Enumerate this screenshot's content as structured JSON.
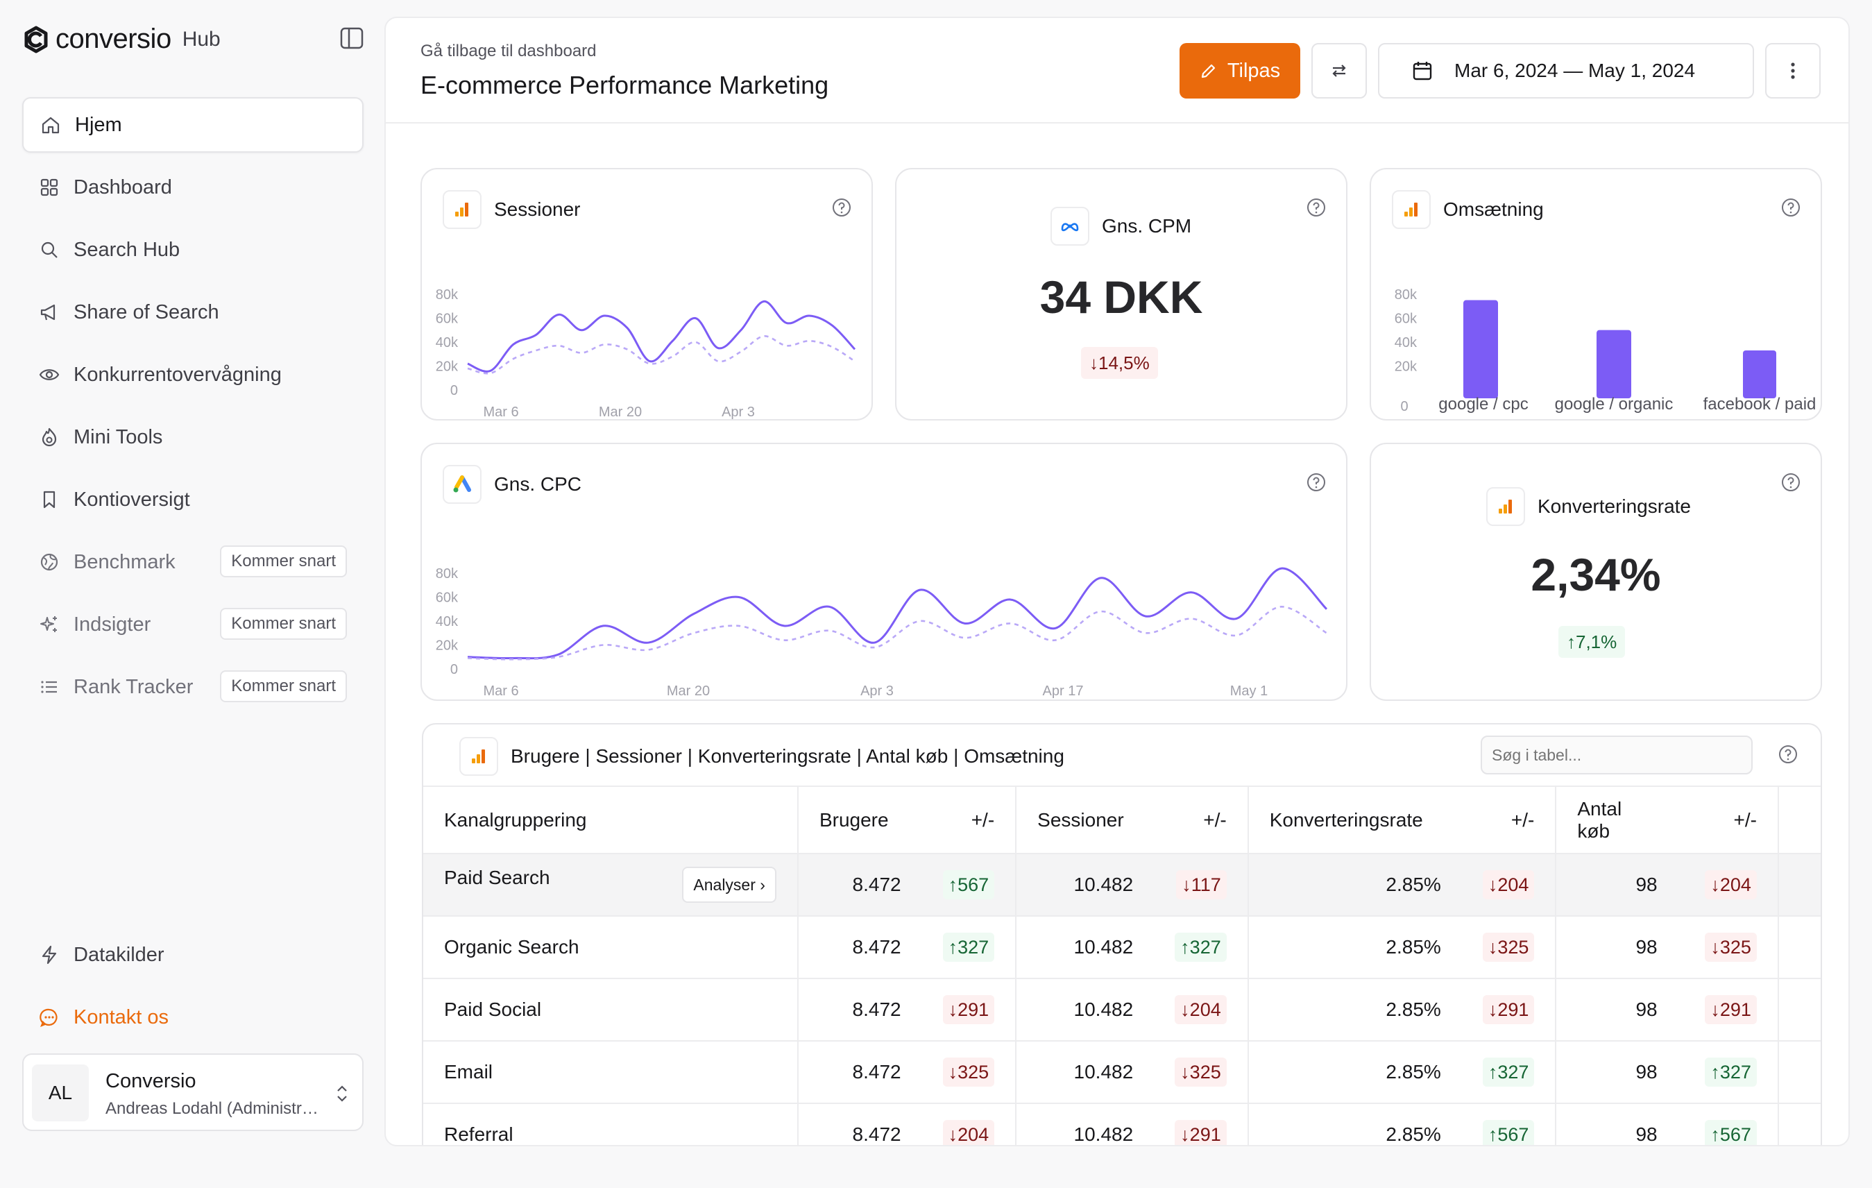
{
  "app": {
    "brand": "conversio",
    "brand_suffix": "Hub"
  },
  "nav": {
    "items": [
      {
        "label": "Hjem",
        "icon": "home-icon",
        "active": true
      },
      {
        "label": "Dashboard",
        "icon": "dashboard-icon"
      },
      {
        "label": "Search Hub",
        "icon": "search-icon"
      },
      {
        "label": "Share of Search",
        "icon": "megaphone-icon"
      },
      {
        "label": "Konkurrentovervågning",
        "icon": "eye-icon"
      },
      {
        "label": "Mini Tools",
        "icon": "flame-icon"
      },
      {
        "label": "Kontioversigt",
        "icon": "bookmark-icon"
      },
      {
        "label": "Benchmark",
        "icon": "globe-icon",
        "badge": "Kommer snart",
        "disabled": true
      },
      {
        "label": "Indsigter",
        "icon": "sparkles-icon",
        "badge": "Kommer snart",
        "disabled": true
      },
      {
        "label": "Rank Tracker",
        "icon": "list-icon",
        "badge": "Kommer snart",
        "disabled": true
      }
    ],
    "datakilder": "Datakilder",
    "contact": "Kontakt os"
  },
  "user": {
    "initials": "AL",
    "name": "Conversio",
    "sub": "Andreas Lodahl (Administrator)"
  },
  "header": {
    "back": "Gå tilbage til dashboard",
    "title": "E-commerce Performance Marketing",
    "tilpas": "Tilpas",
    "date_range": "Mar 6, 2024 — May 1, 2024"
  },
  "colors": {
    "accent": "#ea6a0c",
    "line": "#7c5cf5",
    "line_dashed": "#b9a8f7",
    "bar": "#7c5cf5"
  },
  "cards": {
    "sessioner": {
      "title": "Sessioner"
    },
    "cpm": {
      "title": "Gns. CPM",
      "value": "34 DKK",
      "delta": "14,5%",
      "direction": "down"
    },
    "omsaetning": {
      "title": "Omsætning"
    },
    "cpc": {
      "title": "Gns. CPC"
    },
    "konv": {
      "title": "Konverteringsrate",
      "value": "2,34%",
      "delta": "7,1%",
      "direction": "up"
    }
  },
  "chart_data": [
    {
      "type": "line",
      "title": "Sessioner",
      "x": [
        "Mar 6",
        "Mar 8",
        "Mar 10",
        "Mar 12",
        "Mar 14",
        "Mar 16",
        "Mar 18",
        "Mar 20",
        "Mar 22",
        "Mar 24",
        "Mar 26",
        "Mar 28",
        "Mar 30",
        "Apr 1",
        "Apr 3",
        "Apr 5",
        "Apr 7",
        "Apr 9"
      ],
      "xticks": [
        "Mar 6",
        "Mar 20",
        "Apr 3"
      ],
      "yticks": [
        "0",
        "20k",
        "40k",
        "60k",
        "80k"
      ],
      "ylim": [
        0,
        80000
      ],
      "series": [
        {
          "style": "solid",
          "values": [
            22000,
            16000,
            38000,
            46000,
            63000,
            50000,
            62000,
            52000,
            24000,
            41000,
            60000,
            35000,
            50000,
            74000,
            56000,
            62000,
            54000,
            34000
          ]
        },
        {
          "style": "dashed",
          "values": [
            18000,
            14000,
            26000,
            33000,
            37000,
            31000,
            38000,
            34000,
            22000,
            28000,
            40000,
            24000,
            32000,
            45000,
            37000,
            41000,
            36000,
            24000
          ]
        }
      ]
    },
    {
      "type": "bar",
      "title": "Omsætning",
      "categories": [
        "google / cpc",
        "google / organic",
        "facebook / paid"
      ],
      "values": [
        82000,
        57000,
        40000
      ],
      "yticks": [
        "0",
        "20k",
        "40k",
        "60k",
        "80k"
      ],
      "ylim": [
        0,
        80000
      ]
    },
    {
      "type": "line",
      "title": "Gns. CPC",
      "x": [
        "Mar 6",
        "Mar 9",
        "Mar 12",
        "Mar 15",
        "Mar 18",
        "Mar 21",
        "Mar 24",
        "Mar 27",
        "Mar 30",
        "Apr 2",
        "Apr 5",
        "Apr 8",
        "Apr 11",
        "Apr 14",
        "Apr 17",
        "Apr 20",
        "Apr 23",
        "Apr 26",
        "Apr 29",
        "May 2"
      ],
      "xticks": [
        "Mar 6",
        "Mar 20",
        "Apr 3",
        "Apr 17",
        "May 1"
      ],
      "yticks": [
        "0",
        "20k",
        "40k",
        "60k",
        "80k"
      ],
      "ylim": [
        0,
        80000
      ],
      "series": [
        {
          "style": "solid",
          "values": [
            10000,
            9000,
            12000,
            36000,
            22000,
            46000,
            60000,
            36000,
            52000,
            22000,
            66000,
            38000,
            58000,
            34000,
            76000,
            44000,
            64000,
            42000,
            84000,
            50000
          ]
        },
        {
          "style": "dashed",
          "values": [
            9000,
            8000,
            10000,
            20000,
            16000,
            30000,
            36000,
            24000,
            32000,
            18000,
            40000,
            26000,
            38000,
            24000,
            48000,
            30000,
            42000,
            28000,
            52000,
            30000
          ]
        }
      ]
    }
  ],
  "table": {
    "title": "Brugere | Sessioner | Konverteringsrate | Antal køb | Omsætning",
    "search_placeholder": "Søg i tabel...",
    "headers": [
      "Kanalgruppering",
      "Brugere",
      "+/-",
      "Sessioner",
      "+/-",
      "Konverteringsrate",
      "+/-",
      "Antal køb",
      "+/-"
    ],
    "analyse_label": "Analyser",
    "rows": [
      {
        "name": "Paid Search",
        "brugere": "8.472",
        "d1": "567",
        "u1": true,
        "sessioner": "10.482",
        "d2": "117",
        "u2": false,
        "konv": "2.85%",
        "d3": "204",
        "u3": false,
        "koeb": "98",
        "d4": "204",
        "u4": false
      },
      {
        "name": "Organic Search",
        "brugere": "8.472",
        "d1": "327",
        "u1": true,
        "sessioner": "10.482",
        "d2": "327",
        "u2": true,
        "konv": "2.85%",
        "d3": "325",
        "u3": false,
        "koeb": "98",
        "d4": "325",
        "u4": false
      },
      {
        "name": "Paid Social",
        "brugere": "8.472",
        "d1": "291",
        "u1": false,
        "sessioner": "10.482",
        "d2": "204",
        "u2": false,
        "konv": "2.85%",
        "d3": "291",
        "u3": false,
        "koeb": "98",
        "d4": "291",
        "u4": false
      },
      {
        "name": "Email",
        "brugere": "8.472",
        "d1": "325",
        "u1": false,
        "sessioner": "10.482",
        "d2": "325",
        "u2": false,
        "konv": "2.85%",
        "d3": "327",
        "u3": true,
        "koeb": "98",
        "d4": "327",
        "u4": true
      },
      {
        "name": "Referral",
        "brugere": "8.472",
        "d1": "204",
        "u1": false,
        "sessioner": "10.482",
        "d2": "291",
        "u2": false,
        "konv": "2.85%",
        "d3": "567",
        "u3": true,
        "koeb": "98",
        "d4": "567",
        "u4": true
      }
    ]
  }
}
